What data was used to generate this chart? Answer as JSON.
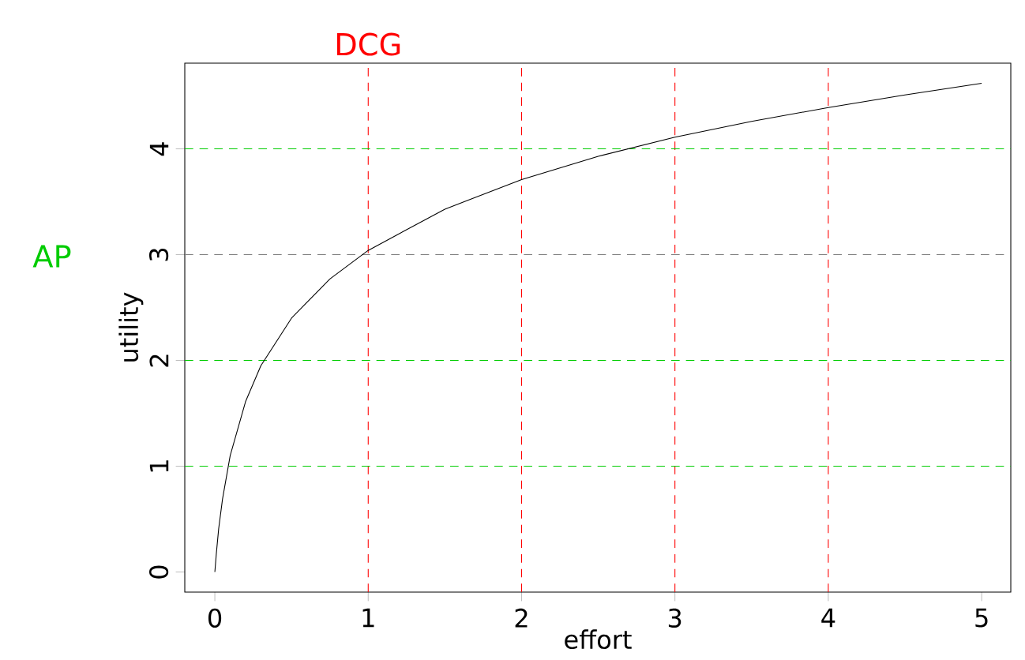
{
  "chart_data": {
    "type": "line",
    "xlabel": "effort",
    "ylabel": "utility",
    "x": [
      0,
      0.01,
      0.025,
      0.05,
      0.1,
      0.2,
      0.3,
      0.5,
      0.75,
      1,
      1.5,
      2,
      2.5,
      3,
      3.5,
      4,
      4.5,
      5
    ],
    "series": [
      {
        "color": "#000000",
        "values": [
          0,
          0.18,
          0.41,
          0.69,
          1.1,
          1.61,
          1.95,
          2.4,
          2.77,
          3.04,
          3.43,
          3.71,
          3.93,
          4.11,
          4.26,
          4.39,
          4.51,
          4.62
        ]
      }
    ],
    "xlim": [
      -0.196,
      5.19
    ],
    "ylim": [
      -0.19,
      4.81
    ],
    "xticks": [
      0,
      1,
      2,
      3,
      4,
      5
    ],
    "yticks": [
      0,
      1,
      2,
      3,
      4
    ],
    "ref_lines": [
      {
        "axis": "x",
        "value": 1,
        "label": "DCG",
        "color": "#ff0000",
        "line_style": "dashed"
      },
      {
        "axis": "x",
        "value": 2,
        "color": "#ff0000",
        "line_style": "dashed"
      },
      {
        "axis": "x",
        "value": 3,
        "color": "#ff0000",
        "line_style": "dashed"
      },
      {
        "axis": "x",
        "value": 4,
        "color": "#ff0000",
        "line_style": "dashed"
      },
      {
        "axis": "y",
        "value": 1,
        "color": "#00cc00",
        "line_style": "dashed"
      },
      {
        "axis": "y",
        "value": 2,
        "color": "#00cc00",
        "line_style": "dashed"
      },
      {
        "axis": "y",
        "value": 3,
        "color": "#808080",
        "line_style": "dashed"
      },
      {
        "axis": "y",
        "value": 4,
        "color": "#00cc00",
        "line_style": "dashed"
      }
    ],
    "annotations": [
      "AP"
    ],
    "grid": false,
    "marker": "none",
    "line_style": "solid"
  }
}
